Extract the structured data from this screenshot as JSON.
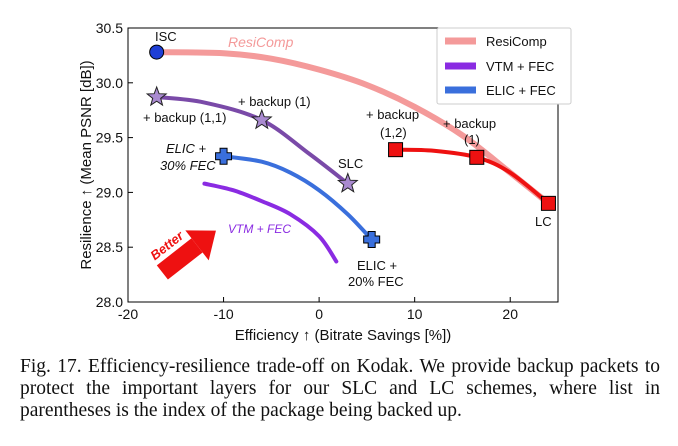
{
  "chart_data": {
    "type": "line",
    "xlabel": "Efficiency ↑ (Bitrate Savings [%])",
    "ylabel": "Resilience ↑ (Mean PSNR [dB])",
    "xlim": [
      -20,
      25
    ],
    "ylim": [
      28.0,
      30.5
    ],
    "xticks": [
      -20,
      -10,
      0,
      10,
      20
    ],
    "yticks": [
      28.0,
      28.5,
      29.0,
      29.5,
      30.0,
      30.5
    ],
    "grid": false,
    "legend": {
      "position": "top-right",
      "entries": [
        {
          "label": "ResiComp",
          "color": "#f49a9a"
        },
        {
          "label": "VTM + FEC",
          "color": "#8a2be2"
        },
        {
          "label": "ELIC + FEC",
          "color": "#3a6fdc"
        }
      ]
    },
    "series": [
      {
        "name": "ResiComp",
        "color": "#f49a9a",
        "x": [
          -17,
          -10,
          -5,
          0,
          5,
          10,
          15,
          20,
          24
        ],
        "y": [
          30.28,
          30.27,
          30.22,
          30.12,
          29.98,
          29.78,
          29.52,
          29.18,
          28.9
        ]
      },
      {
        "name": "VTM + FEC",
        "color": "#8a2be2",
        "x": [
          -12,
          -9,
          -6,
          -3,
          0,
          1.8
        ],
        "y": [
          29.08,
          29.02,
          28.92,
          28.8,
          28.6,
          28.37
        ]
      },
      {
        "name": "ELIC + FEC",
        "color": "#3a6fdc",
        "x": [
          -10,
          -6,
          -3,
          0,
          3,
          5.5
        ],
        "y": [
          29.33,
          29.28,
          29.18,
          29.02,
          28.8,
          28.57
        ]
      },
      {
        "name": "",
        "color": "#7a4aa8",
        "x": [
          -17,
          -12,
          -6,
          -1,
          3
        ],
        "y": [
          29.87,
          29.82,
          29.66,
          29.35,
          29.08
        ]
      },
      {
        "name": "",
        "color": "#ee1111",
        "x": [
          8,
          12,
          16.5,
          20,
          24
        ],
        "y": [
          29.39,
          29.38,
          29.32,
          29.18,
          28.9
        ]
      }
    ],
    "points": [
      {
        "label": "ISC",
        "x": -17,
        "y": 30.28,
        "marker": "circle",
        "color": "#1f3fd6"
      },
      {
        "label": "+ backup (1,1)",
        "x": -17,
        "y": 29.87,
        "marker": "star",
        "color": "#a98ad0"
      },
      {
        "label": "+ backup (1)",
        "x": -6,
        "y": 29.66,
        "marker": "star",
        "color": "#a98ad0"
      },
      {
        "label": "SLC",
        "x": 3,
        "y": 29.08,
        "marker": "star",
        "color": "#a98ad0"
      },
      {
        "label": "+ backup (1,2)",
        "x": 8,
        "y": 29.39,
        "marker": "square",
        "color": "#ee1111"
      },
      {
        "label": "+ backup (1)",
        "x": 16.5,
        "y": 29.32,
        "marker": "square",
        "color": "#ee1111"
      },
      {
        "label": "LC",
        "x": 24,
        "y": 28.9,
        "marker": "square",
        "color": "#ee1111"
      },
      {
        "label": "ELIC + 30% FEC",
        "x": -10,
        "y": 29.33,
        "marker": "plus",
        "color": "#3a6fdc"
      },
      {
        "label": "ELIC + 20% FEC",
        "x": 5.5,
        "y": 28.57,
        "marker": "plus",
        "color": "#3a6fdc"
      }
    ],
    "annotations": {
      "resicomp": "ResiComp",
      "isc": "ISC",
      "backup11": "+ backup (1,1)",
      "backup1_slc": "+ backup (1)",
      "slc": "SLC",
      "backup12": "+ backup (1,2)",
      "backup1_lc": "+ backup (1)",
      "lc": "LC",
      "elic30": "ELIC + 30% FEC",
      "elic20": "ELIC + 20% FEC",
      "vtm": "VTM + FEC",
      "better": "Better"
    }
  },
  "caption": "Fig. 17.  Efficiency-resilience trade-off on Kodak. We provide backup packets to protect the important layers for our SLC and LC schemes, where list in parentheses is the index of the package being backed up."
}
